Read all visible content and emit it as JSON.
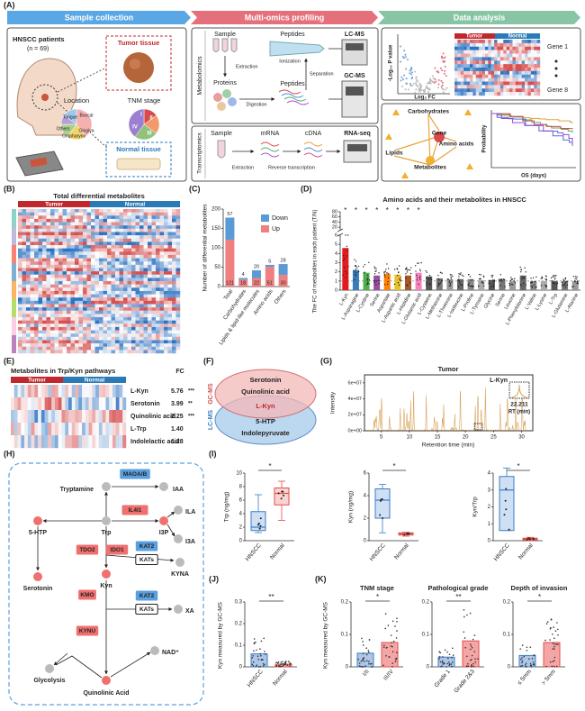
{
  "A": {
    "label": "(A)",
    "banners": [
      "Sample collection",
      "Multi-omics profiling",
      "Data analysis"
    ],
    "patients": "HNSCC patients",
    "n": "(n = 69)",
    "tumor_tissue": "Tumor tissue",
    "normal_tissue": "Normal tissue",
    "location": {
      "title": "Location",
      "parts": [
        "Tongue",
        "Buccal",
        "Gingiva",
        "Oropharynx",
        "Others"
      ]
    },
    "tnm": {
      "title": "TNM stage",
      "parts": [
        "I",
        "II",
        "III",
        "IV"
      ]
    },
    "metabolomics": {
      "title": "Metabolomics",
      "nodes": [
        "Sample",
        "Peptides",
        "Proteins",
        "Peptides",
        "LC-MS",
        "GC-MS"
      ],
      "steps": [
        "Extraction",
        "Ionization",
        "Digestion",
        "Separation"
      ]
    },
    "transcriptomics": {
      "title": "Transcriptomics",
      "nodes": [
        "Sample",
        "mRNA",
        "cDNA",
        "RNA-seq"
      ],
      "steps": [
        "Extraction",
        "Reverse transcription"
      ]
    },
    "volcano": {
      "y_label": "-Log₁₀ P value",
      "x_label": "Log₂ FC"
    },
    "heatmap": {
      "groups": [
        "Tumor",
        "Normal"
      ],
      "genes": [
        "Gene 1",
        "Gene 8"
      ]
    },
    "network": [
      "Carbohydrates",
      "Gene",
      "Amino acids",
      "Lipids",
      "Metabolites"
    ],
    "survival": {
      "y_label": "Probability",
      "x_label": "OS (days)"
    }
  },
  "B": {
    "label": "(B)",
    "title": "Total differential metabolites",
    "groups": [
      "Tumor",
      "Normal"
    ]
  },
  "C": {
    "label": "(C)",
    "type": "bar",
    "y_label": "Number of differential metabolites",
    "categories": [
      "Total",
      "Carbohydrates",
      "Lipids & lipid-like molecules",
      "Amino acids",
      "Others"
    ],
    "series": [
      {
        "name": "Down",
        "color": "#5b9bd5",
        "values": [
          57,
          4,
          20,
          5,
          28
        ]
      },
      {
        "name": "Up",
        "color": "#f08080",
        "values": [
          121,
          18,
          22,
          51,
          30
        ]
      }
    ],
    "ylim": [
      0,
      200
    ],
    "yticks": [
      0,
      50,
      100,
      150,
      200
    ]
  },
  "D": {
    "label": "(D)",
    "type": "bar",
    "title": "Amino acids and their metabolites in HNSCC",
    "y_label": "The FC of metabolites in each patient (T/N)",
    "categories": [
      "L-Kyn",
      "L-Asparagine",
      "L-Cystine",
      "Serine",
      "Aspartate",
      "L-Aspartic acid",
      "L-Histidine",
      "L-Glutamic acid",
      "L-Cysteine",
      "L-Methionine",
      "L-Threonine",
      "L-Isoleucine",
      "L-Proline",
      "L-Tyrosine",
      "Glycine",
      "Serine",
      "Leucine",
      "L-Phenylalanine",
      "L-Valine",
      "L-Lysine",
      "L-Trp",
      "L-Glutamine",
      "L-Alanine"
    ],
    "values": [
      4.6,
      2.2,
      1.9,
      1.6,
      1.8,
      1.7,
      1.6,
      1.9,
      1.5,
      1.3,
      1.2,
      1.2,
      1.2,
      1.1,
      1.1,
      1.1,
      1.0,
      1.6,
      1.0,
      1.0,
      1.0,
      1.0,
      1.0
    ],
    "colors": [
      "#e41a1c",
      "#377eb8",
      "#4daf4a",
      "#984ea3",
      "#ff7f00",
      "#e6c229",
      "#a65628",
      "#f781bf",
      "#555555",
      "#777777",
      "#999999",
      "#666666",
      "#888888",
      "#aaaaaa",
      "#555555",
      "#777777",
      "#999999",
      "#666666",
      "#888888",
      "#aaaaaa",
      "#555555",
      "#777777",
      "#999999"
    ],
    "significance": [
      "*",
      "*",
      "*",
      "*",
      "*",
      "*",
      "*",
      "*"
    ],
    "ylim_lower": [
      0,
      6
    ],
    "yticks_lower": [
      0,
      1,
      2,
      3,
      4,
      5,
      6
    ],
    "ylim_upper": [
      10,
      80
    ],
    "yticks_upper": [
      20,
      40,
      60,
      80
    ]
  },
  "E": {
    "label": "(E)",
    "title": "Metabolites in Trp/Kyn pathways",
    "groups": [
      "Tumor",
      "Normal"
    ],
    "fc_header": "FC",
    "rows": [
      {
        "name": "L-Kyn",
        "fc": "5.76",
        "sig": "***"
      },
      {
        "name": "Serotonin",
        "fc": "3.99",
        "sig": "**"
      },
      {
        "name": "Quinolinic acid",
        "fc": "2.25",
        "sig": "***"
      },
      {
        "name": "L-Trp",
        "fc": "1.40",
        "sig": ""
      },
      {
        "name": "Indolelactic acid",
        "fc": "1.28",
        "sig": ""
      }
    ]
  },
  "F": {
    "label": "(F)",
    "sets": [
      "GC-MS",
      "LC-MS"
    ],
    "gc_only": [
      "Serotonin",
      "Quinolinic acid"
    ],
    "both": "L-Kyn",
    "lc_only": [
      "5-HTP",
      "Indolepyruvate"
    ]
  },
  "G": {
    "label": "(G)",
    "type": "line",
    "title": "Tumor",
    "y_label": "Intensity",
    "x_label": "Retention time (min)",
    "xlim": [
      2,
      32
    ],
    "xticks": [
      5,
      10,
      15,
      20,
      25,
      30
    ],
    "ylim": [
      0,
      70000000
    ],
    "yticks": [
      {
        "value": 0,
        "label": "0e+00"
      },
      {
        "value": 20000000,
        "label": "2e+07"
      },
      {
        "value": 40000000,
        "label": "4e+07"
      },
      {
        "value": 60000000,
        "label": "6e+07"
      }
    ],
    "annotation": {
      "name": "L-Kyn",
      "rt": "22.211",
      "rt_label": "RT (min)"
    }
  },
  "H": {
    "label": "(H)",
    "nodes": [
      {
        "name": "Tryptamine",
        "up": false
      },
      {
        "name": "IAA",
        "up": false
      },
      {
        "name": "Trp",
        "up": false
      },
      {
        "name": "5-HTP",
        "up": true
      },
      {
        "name": "I3P",
        "up": true
      },
      {
        "name": "ILA",
        "up": false
      },
      {
        "name": "I3A",
        "up": false
      },
      {
        "name": "Serotonin",
        "up": true
      },
      {
        "name": "Kyn",
        "up": true
      },
      {
        "name": "KYNA",
        "up": false
      },
      {
        "name": "XA",
        "up": false
      },
      {
        "name": "NAD⁺",
        "up": false
      },
      {
        "name": "Glycolysis",
        "up": false
      },
      {
        "name": "Quinolinic Acid",
        "up": true
      }
    ],
    "enzymes": [
      {
        "name": "MAOA/B",
        "kind": "down"
      },
      {
        "name": "IL4I1",
        "kind": "up"
      },
      {
        "name": "TDO2",
        "kind": "up"
      },
      {
        "name": "IDO1",
        "kind": "up"
      },
      {
        "name": "KAT2",
        "kind": "down"
      },
      {
        "name": "KATs",
        "kind": "other"
      },
      {
        "name": "KMO",
        "kind": "up"
      },
      {
        "name": "KAT2",
        "kind": "down"
      },
      {
        "name": "KATs",
        "kind": "other"
      },
      {
        "name": "KYNU",
        "kind": "up"
      }
    ]
  },
  "I": {
    "label": "(I)",
    "type": "box",
    "groups": [
      "HNSCC",
      "Normal"
    ],
    "plots": [
      {
        "y_label": "Trp (ng/mg)",
        "ylim": [
          0,
          10
        ],
        "yticks": [
          0,
          2,
          4,
          6,
          8,
          10
        ],
        "sig": "*",
        "boxes": [
          {
            "min": 1.2,
            "q1": 1.5,
            "median": 2,
            "q3": 4.3,
            "max": 6.8
          },
          {
            "min": 3,
            "q1": 5.3,
            "median": 7,
            "q3": 7.8,
            "max": 8.8
          }
        ]
      },
      {
        "y_label": "Kyn (ng/mg)",
        "ylim": [
          0,
          6
        ],
        "yticks": [
          0,
          2,
          4,
          6
        ],
        "sig": "*",
        "boxes": [
          {
            "min": 0.7,
            "q1": 2,
            "median": 3.6,
            "q3": 4.6,
            "max": 5
          },
          {
            "min": 0.4,
            "q1": 0.5,
            "median": 0.6,
            "q3": 0.7,
            "max": 0.75
          }
        ]
      },
      {
        "y_label": "Kyn/Trp",
        "ylim": [
          0,
          4
        ],
        "yticks": [
          0,
          1,
          2,
          3,
          4
        ],
        "sig": "*",
        "boxes": [
          {
            "min": 0.6,
            "q1": 0.6,
            "median": 3,
            "q3": 3.8,
            "max": 4.3
          },
          {
            "min": 0,
            "q1": 0.05,
            "median": 0.1,
            "q3": 0.15,
            "max": 0.2
          }
        ]
      }
    ]
  },
  "J": {
    "label": "(J)",
    "type": "bar",
    "y_label": "Kyn measured by GC-MS",
    "categories": [
      "HNSCC",
      "Normal"
    ],
    "values": [
      0.06,
      0.012
    ],
    "colors": [
      "#aec7e8",
      "#f4a6a6"
    ],
    "ylim": [
      0,
      0.3
    ],
    "yticks": [
      0,
      0.1,
      0.2,
      0.3
    ],
    "sig": "**"
  },
  "K": {
    "label": "(K)",
    "type": "bar",
    "y_label": "Kyn measured by GC-MS",
    "colors": [
      "#aec7e8",
      "#f4a6a6"
    ],
    "ylim": [
      0,
      0.2
    ],
    "yticks": [
      0,
      0.1,
      0.2
    ],
    "plots": [
      {
        "title": "TNM stage",
        "categories": [
          "I/II",
          "III/IV"
        ],
        "values": [
          0.042,
          0.075
        ],
        "sig": "*"
      },
      {
        "title": "Pathological grade",
        "categories": [
          "Grade 1",
          "Grade 2&3"
        ],
        "values": [
          0.03,
          0.08
        ],
        "sig": "**"
      },
      {
        "title": "Depth of invasion",
        "categories": [
          "≤ 5mm",
          "> 5mm"
        ],
        "values": [
          0.035,
          0.075
        ],
        "sig": "*"
      }
    ]
  }
}
